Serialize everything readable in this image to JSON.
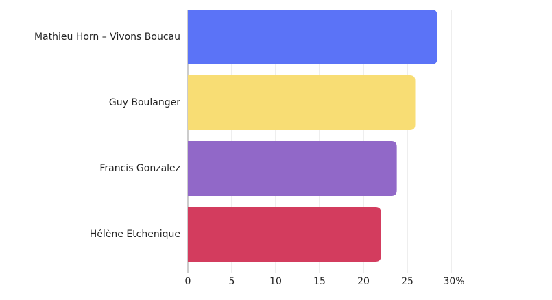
{
  "chart_data": {
    "type": "bar",
    "orientation": "horizontal",
    "categories": [
      "Mathieu Horn – Vivons Boucau",
      "Guy Boulanger",
      "Francis Gonzalez",
      "Hélène Etchenique"
    ],
    "values": [
      28.4,
      25.9,
      23.8,
      22.0
    ],
    "colors": [
      "#5b73f7",
      "#f8dd74",
      "#9168c8",
      "#d33c5e"
    ],
    "xlim": [
      0,
      30
    ],
    "xticks": [
      0,
      5,
      10,
      15,
      20,
      25,
      {
        "value": 30,
        "label": "30%"
      }
    ],
    "grid": true
  }
}
